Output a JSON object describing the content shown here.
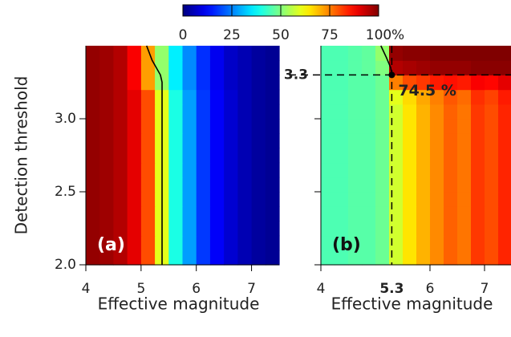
{
  "colorbar": {
    "colormap": "jet",
    "clim": [
      0,
      100
    ],
    "ticks": [
      0,
      25,
      50,
      75,
      100
    ],
    "unit": "%"
  },
  "chart_data": [
    {
      "type": "heatmap",
      "colormap": "jet",
      "panel_label": "(a)",
      "xlabel": "Effective magnitude",
      "ylabel": "Detection threshold",
      "xlim": [
        4,
        7.5
      ],
      "ylim": [
        2,
        3.5
      ],
      "xticks": [
        4,
        5,
        6,
        7
      ],
      "yticks": [
        {
          "value": 2,
          "label": "2.0"
        },
        2.5,
        {
          "value": 3,
          "label": "3.0"
        }
      ],
      "show_ytick_labels": true,
      "x": [
        4.125,
        4.375,
        4.625,
        4.875,
        5.125,
        5.375,
        5.625,
        5.875,
        6.125,
        6.375,
        6.625,
        6.875,
        7.125,
        7.375
      ],
      "y": [
        2.05,
        2.15,
        2.25,
        2.35,
        2.45,
        2.55,
        2.65,
        2.75,
        2.85,
        2.95,
        3.05,
        3.15,
        3.25,
        3.35,
        3.45
      ],
      "z": [
        [
          98,
          97,
          95,
          90,
          80,
          60,
          40,
          28,
          18,
          12,
          8,
          5,
          3,
          2
        ],
        [
          98,
          97,
          95,
          90,
          80,
          60,
          40,
          28,
          18,
          12,
          8,
          5,
          3,
          2
        ],
        [
          98,
          97,
          95,
          90,
          80,
          60,
          40,
          28,
          18,
          12,
          8,
          5,
          3,
          2
        ],
        [
          98,
          97,
          95,
          90,
          80,
          60,
          40,
          28,
          18,
          12,
          8,
          5,
          3,
          2
        ],
        [
          98,
          97,
          95,
          90,
          80,
          60,
          40,
          28,
          18,
          12,
          8,
          5,
          3,
          2
        ],
        [
          98,
          97,
          95,
          90,
          80,
          60,
          40,
          28,
          18,
          12,
          8,
          5,
          3,
          2
        ],
        [
          98,
          97,
          95,
          90,
          80,
          60,
          40,
          28,
          18,
          12,
          8,
          5,
          3,
          2
        ],
        [
          98,
          97,
          95,
          90,
          80,
          60,
          40,
          28,
          18,
          12,
          8,
          5,
          3,
          2
        ],
        [
          98,
          97,
          95,
          90,
          80,
          60,
          40,
          28,
          18,
          12,
          8,
          5,
          3,
          2
        ],
        [
          98,
          97,
          95,
          90,
          80,
          60,
          40,
          28,
          18,
          12,
          8,
          5,
          3,
          2
        ],
        [
          98,
          97,
          95,
          90,
          80,
          60,
          40,
          28,
          18,
          12,
          8,
          5,
          3,
          2
        ],
        [
          98,
          97,
          95,
          90,
          80,
          60,
          40,
          28,
          18,
          12,
          8,
          5,
          3,
          2
        ],
        [
          98,
          97,
          95,
          88,
          72,
          52,
          36,
          26,
          17,
          11,
          7,
          5,
          3,
          2
        ],
        [
          98,
          97,
          95,
          88,
          72,
          52,
          36,
          26,
          17,
          11,
          7,
          5,
          3,
          2
        ],
        [
          98,
          97,
          95,
          88,
          72,
          52,
          36,
          26,
          17,
          11,
          7,
          5,
          3,
          2
        ]
      ],
      "contour": {
        "x": [
          5.1,
          5.2,
          5.35,
          5.38,
          5.38
        ],
        "y": [
          3.5,
          3.4,
          3.3,
          3.25,
          2.0
        ]
      }
    },
    {
      "type": "heatmap",
      "colormap": "jet",
      "panel_label": "(b)",
      "xlabel": "Effective magnitude",
      "xlim": [
        4,
        7.5
      ],
      "ylim": [
        2,
        3.5
      ],
      "xticks": [
        4,
        6,
        7
      ],
      "yticks": [
        2,
        2.5,
        3
      ],
      "show_ytick_labels": false,
      "x": [
        4.125,
        4.375,
        4.625,
        4.875,
        5.125,
        5.375,
        5.625,
        5.875,
        6.125,
        6.375,
        6.625,
        6.875,
        7.125,
        7.375
      ],
      "y": [
        2.05,
        2.15,
        2.25,
        2.35,
        2.45,
        2.55,
        2.65,
        2.75,
        2.85,
        2.95,
        3.05,
        3.15,
        3.25,
        3.35,
        3.45
      ],
      "z": [
        [
          45,
          45,
          46,
          46,
          48,
          58,
          65,
          70,
          74,
          78,
          76,
          82,
          80,
          84
        ],
        [
          45,
          45,
          46,
          46,
          48,
          58,
          65,
          70,
          74,
          78,
          76,
          82,
          80,
          84
        ],
        [
          45,
          45,
          46,
          46,
          48,
          58,
          65,
          70,
          74,
          78,
          76,
          82,
          80,
          84
        ],
        [
          45,
          45,
          46,
          46,
          48,
          58,
          65,
          70,
          74,
          78,
          76,
          82,
          80,
          84
        ],
        [
          45,
          45,
          46,
          46,
          48,
          58,
          65,
          70,
          74,
          78,
          76,
          82,
          80,
          84
        ],
        [
          45,
          45,
          46,
          46,
          48,
          58,
          65,
          70,
          74,
          78,
          76,
          82,
          80,
          84
        ],
        [
          45,
          45,
          46,
          46,
          48,
          58,
          65,
          70,
          74,
          78,
          76,
          82,
          80,
          84
        ],
        [
          45,
          45,
          46,
          46,
          48,
          58,
          65,
          70,
          74,
          78,
          76,
          82,
          80,
          84
        ],
        [
          45,
          45,
          46,
          46,
          48,
          58,
          65,
          70,
          74,
          78,
          76,
          82,
          80,
          84
        ],
        [
          45,
          45,
          46,
          46,
          48,
          58,
          65,
          70,
          74,
          78,
          76,
          82,
          80,
          84
        ],
        [
          45,
          45,
          46,
          46,
          48,
          58,
          65,
          70,
          74,
          78,
          76,
          82,
          80,
          84
        ],
        [
          45,
          45,
          46,
          46,
          48,
          60,
          66,
          71,
          75,
          79,
          77,
          83,
          81,
          85
        ],
        [
          45,
          45,
          46,
          46,
          48,
          75,
          80,
          82,
          85,
          86,
          85,
          88,
          87,
          90
        ],
        [
          45,
          45,
          46,
          47,
          50,
          95,
          96,
          97,
          98,
          98,
          98,
          99,
          99,
          99
        ],
        [
          45,
          45,
          46,
          47,
          52,
          98,
          99,
          99,
          100,
          100,
          100,
          100,
          100,
          100
        ]
      ],
      "contour": {
        "x": [
          5.1,
          5.2,
          5.28,
          5.3
        ],
        "y": [
          3.5,
          3.42,
          3.35,
          3.3
        ]
      },
      "marker": {
        "x": 5.3,
        "y": 3.3,
        "value": 74.5,
        "value_label": "74.5 %"
      }
    }
  ]
}
